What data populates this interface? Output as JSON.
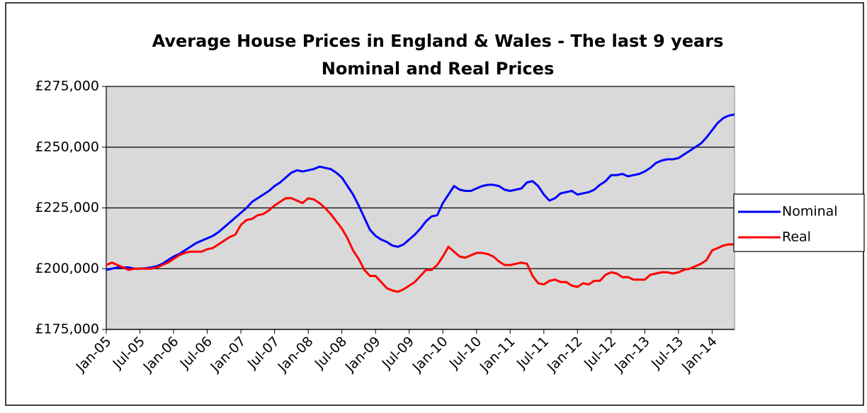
{
  "chart_data": {
    "type": "line",
    "title": "Average House Prices in England & Wales - The last 9 years",
    "subtitle": "Nominal and Real Prices",
    "categories": [
      "Jan-05",
      null,
      null,
      null,
      null,
      null,
      "Jul-05",
      null,
      null,
      null,
      null,
      null,
      "Jan-06",
      null,
      null,
      null,
      null,
      null,
      "Jul-06",
      null,
      null,
      null,
      null,
      null,
      "Jan-07",
      null,
      null,
      null,
      null,
      null,
      "Jul-07",
      null,
      null,
      null,
      null,
      null,
      "Jan-08",
      null,
      null,
      null,
      null,
      null,
      "Jul-08",
      null,
      null,
      null,
      null,
      null,
      "Jan-09",
      null,
      null,
      null,
      null,
      null,
      "Jul-09",
      null,
      null,
      null,
      null,
      null,
      "Jan-10",
      null,
      null,
      null,
      null,
      null,
      "Jul-10",
      null,
      null,
      null,
      null,
      null,
      "Jan-11",
      null,
      null,
      null,
      null,
      null,
      "Jul-11",
      null,
      null,
      null,
      null,
      null,
      "Jan-12",
      null,
      null,
      null,
      null,
      null,
      "Jul-12",
      null,
      null,
      null,
      null,
      null,
      "Jan-13",
      null,
      null,
      null,
      null,
      null,
      "Jul-13",
      null,
      null,
      null,
      null,
      null,
      "Jan-14",
      null,
      null,
      null,
      null
    ],
    "series": [
      {
        "name": "Nominal",
        "color": "#0000ff",
        "values": [
          199500,
          200000,
          200500,
          200500,
          200500,
          200000,
          200000,
          200200,
          200500,
          201000,
          202000,
          203500,
          205000,
          206000,
          207500,
          209000,
          210500,
          211500,
          212500,
          213500,
          215000,
          217000,
          219000,
          221000,
          223000,
          225000,
          227500,
          229000,
          230500,
          232000,
          234000,
          235500,
          237500,
          239500,
          240500,
          240000,
          240500,
          241000,
          242000,
          241500,
          241000,
          239500,
          237500,
          234000,
          230500,
          226000,
          221000,
          216000,
          213500,
          212000,
          211000,
          209500,
          209000,
          210000,
          212000,
          214000,
          216500,
          219500,
          221500,
          222000,
          227000,
          230500,
          234000,
          232500,
          232000,
          232000,
          233000,
          234000,
          234500,
          234500,
          234000,
          232500,
          232000,
          232500,
          233000,
          235500,
          236000,
          234000,
          230500,
          228000,
          229000,
          231000,
          231500,
          232000,
          230500,
          231000,
          231500,
          232500,
          234500,
          236000,
          238500,
          238500,
          239000,
          238000,
          238500,
          239000,
          240000,
          241500,
          243500,
          244500,
          245000,
          245000,
          245500,
          247000,
          248500,
          250000,
          251500,
          254000,
          257000,
          260000,
          262000,
          263000,
          263500
        ]
      },
      {
        "name": "Real",
        "color": "#ff0000",
        "values": [
          201500,
          202500,
          201500,
          200500,
          199500,
          200000,
          200000,
          200000,
          200000,
          200500,
          201500,
          202500,
          204000,
          205500,
          206500,
          207000,
          207000,
          207000,
          208000,
          208500,
          210000,
          211500,
          213000,
          214000,
          218000,
          220000,
          220500,
          222000,
          222500,
          224000,
          226000,
          227500,
          229000,
          229000,
          228000,
          227000,
          229000,
          228500,
          227000,
          225000,
          222500,
          219500,
          216500,
          212500,
          207500,
          204000,
          199500,
          197000,
          197000,
          194500,
          192000,
          191000,
          190500,
          191500,
          193000,
          194500,
          197000,
          199500,
          199500,
          201500,
          205000,
          209000,
          207000,
          205000,
          204500,
          205500,
          206500,
          206500,
          206000,
          205000,
          203000,
          201500,
          201500,
          202000,
          202500,
          202000,
          197000,
          194000,
          193500,
          195000,
          195500,
          194500,
          194500,
          193000,
          192500,
          194000,
          193500,
          195000,
          195000,
          197500,
          198500,
          198000,
          196500,
          196500,
          195500,
          195500,
          195500,
          197500,
          198000,
          198500,
          198500,
          198000,
          198500,
          199500,
          200000,
          201000,
          202000,
          203500,
          207500,
          208500,
          209500,
          210000,
          210000
        ]
      }
    ],
    "ylim": [
      175000,
      275000
    ],
    "yticks": [
      {
        "value": 175000,
        "label": "£175,000"
      },
      {
        "value": 200000,
        "label": "£200,000"
      },
      {
        "value": 225000,
        "label": "£225,000"
      },
      {
        "value": 250000,
        "label": "£250,000"
      },
      {
        "value": 275000,
        "label": "£275,000"
      }
    ],
    "grid": true,
    "legend": "right"
  }
}
